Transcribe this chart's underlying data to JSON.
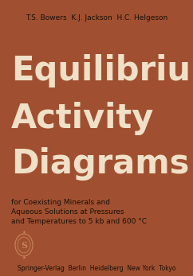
{
  "bg_color": "#A05030",
  "author_color": "#1a1008",
  "title_color": "#F0E0C8",
  "subtitle_color": "#1a1008",
  "publisher_color": "#1a1008",
  "logo_color": "#C8845A",
  "authors": "T.S. Bowers  K.J. Jackson  H.C. Helgeson",
  "title_line1": "Equilibrium",
  "title_line2": "Activity",
  "title_line3": "Diagrams",
  "subtitle_line1": "for Coexisting Minerals and",
  "subtitle_line2": "Aqueous Solutions at Pressures",
  "subtitle_line3": "and Temperatures to 5 kb and 600 °C",
  "publisher": "Springer-Verlag  Berlin  Heidelberg  New York  Tokyo",
  "figsize": [
    2.42,
    3.47
  ],
  "dpi": 100
}
